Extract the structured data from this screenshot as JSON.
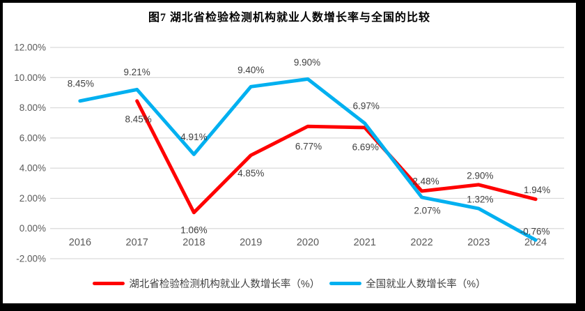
{
  "title": "图7 湖北省检验检测机构就业人数增长率与全国的比较",
  "colors": {
    "background": "#FFFFFF",
    "frame_border": "#000000",
    "grid": "#D9D9D9",
    "axis_text": "#595959",
    "data_label_text": "#404040",
    "title_text": "#000000"
  },
  "chart_data": {
    "type": "line",
    "title": "图7 湖北省检验检测机构就业人数增长率与全国的比较",
    "categories": [
      "2016",
      "2017",
      "2018",
      "2019",
      "2020",
      "2021",
      "2022",
      "2023",
      "2024"
    ],
    "series": [
      {
        "id": "hubei",
        "name": "湖北省检验检测机构就业人数增长率（%）",
        "color": "#FF0000",
        "values": [
          null,
          8.45,
          1.06,
          4.85,
          6.77,
          6.69,
          2.48,
          2.9,
          1.94
        ],
        "labels": [
          null,
          "8.45%",
          "1.06%",
          "4.85%",
          "6.77%",
          "6.69%",
          "2.48%",
          "2.90%",
          "1.94%"
        ],
        "label_offsets": [
          null,
          [
            2,
            26
          ],
          [
            0,
            25
          ],
          [
            0,
            26
          ],
          [
            1,
            29
          ],
          [
            1,
            28
          ],
          [
            6,
            -14
          ],
          [
            2,
            -13
          ],
          [
            2,
            -13
          ]
        ]
      },
      {
        "id": "national",
        "name": "全国就业人数增长率（%）",
        "color": "#00B0F0",
        "values": [
          8.45,
          9.21,
          4.91,
          9.4,
          9.9,
          6.97,
          2.07,
          1.32,
          -0.76
        ],
        "labels": [
          "8.45%",
          "9.21%",
          "4.91%",
          "9.40%",
          "9.90%",
          "6.97%",
          "2.07%",
          "1.32%",
          "-0.76%"
        ],
        "label_offsets": [
          [
            1,
            -25
          ],
          [
            0,
            -25
          ],
          [
            0,
            -25
          ],
          [
            0,
            -24
          ],
          [
            -1,
            -24
          ],
          [
            2,
            -25
          ],
          [
            8,
            19
          ],
          [
            2,
            -13
          ],
          [
            -1,
            -12
          ]
        ]
      }
    ],
    "y_axis": {
      "min": -2,
      "max": 12,
      "step": 2,
      "format": "percent",
      "tick_labels": [
        "12.00%",
        "10.00%",
        "8.00%",
        "6.00%",
        "4.00%",
        "2.00%",
        "0.00%",
        "-2.00%"
      ]
    },
    "grid": true,
    "legend_position": "bottom"
  }
}
